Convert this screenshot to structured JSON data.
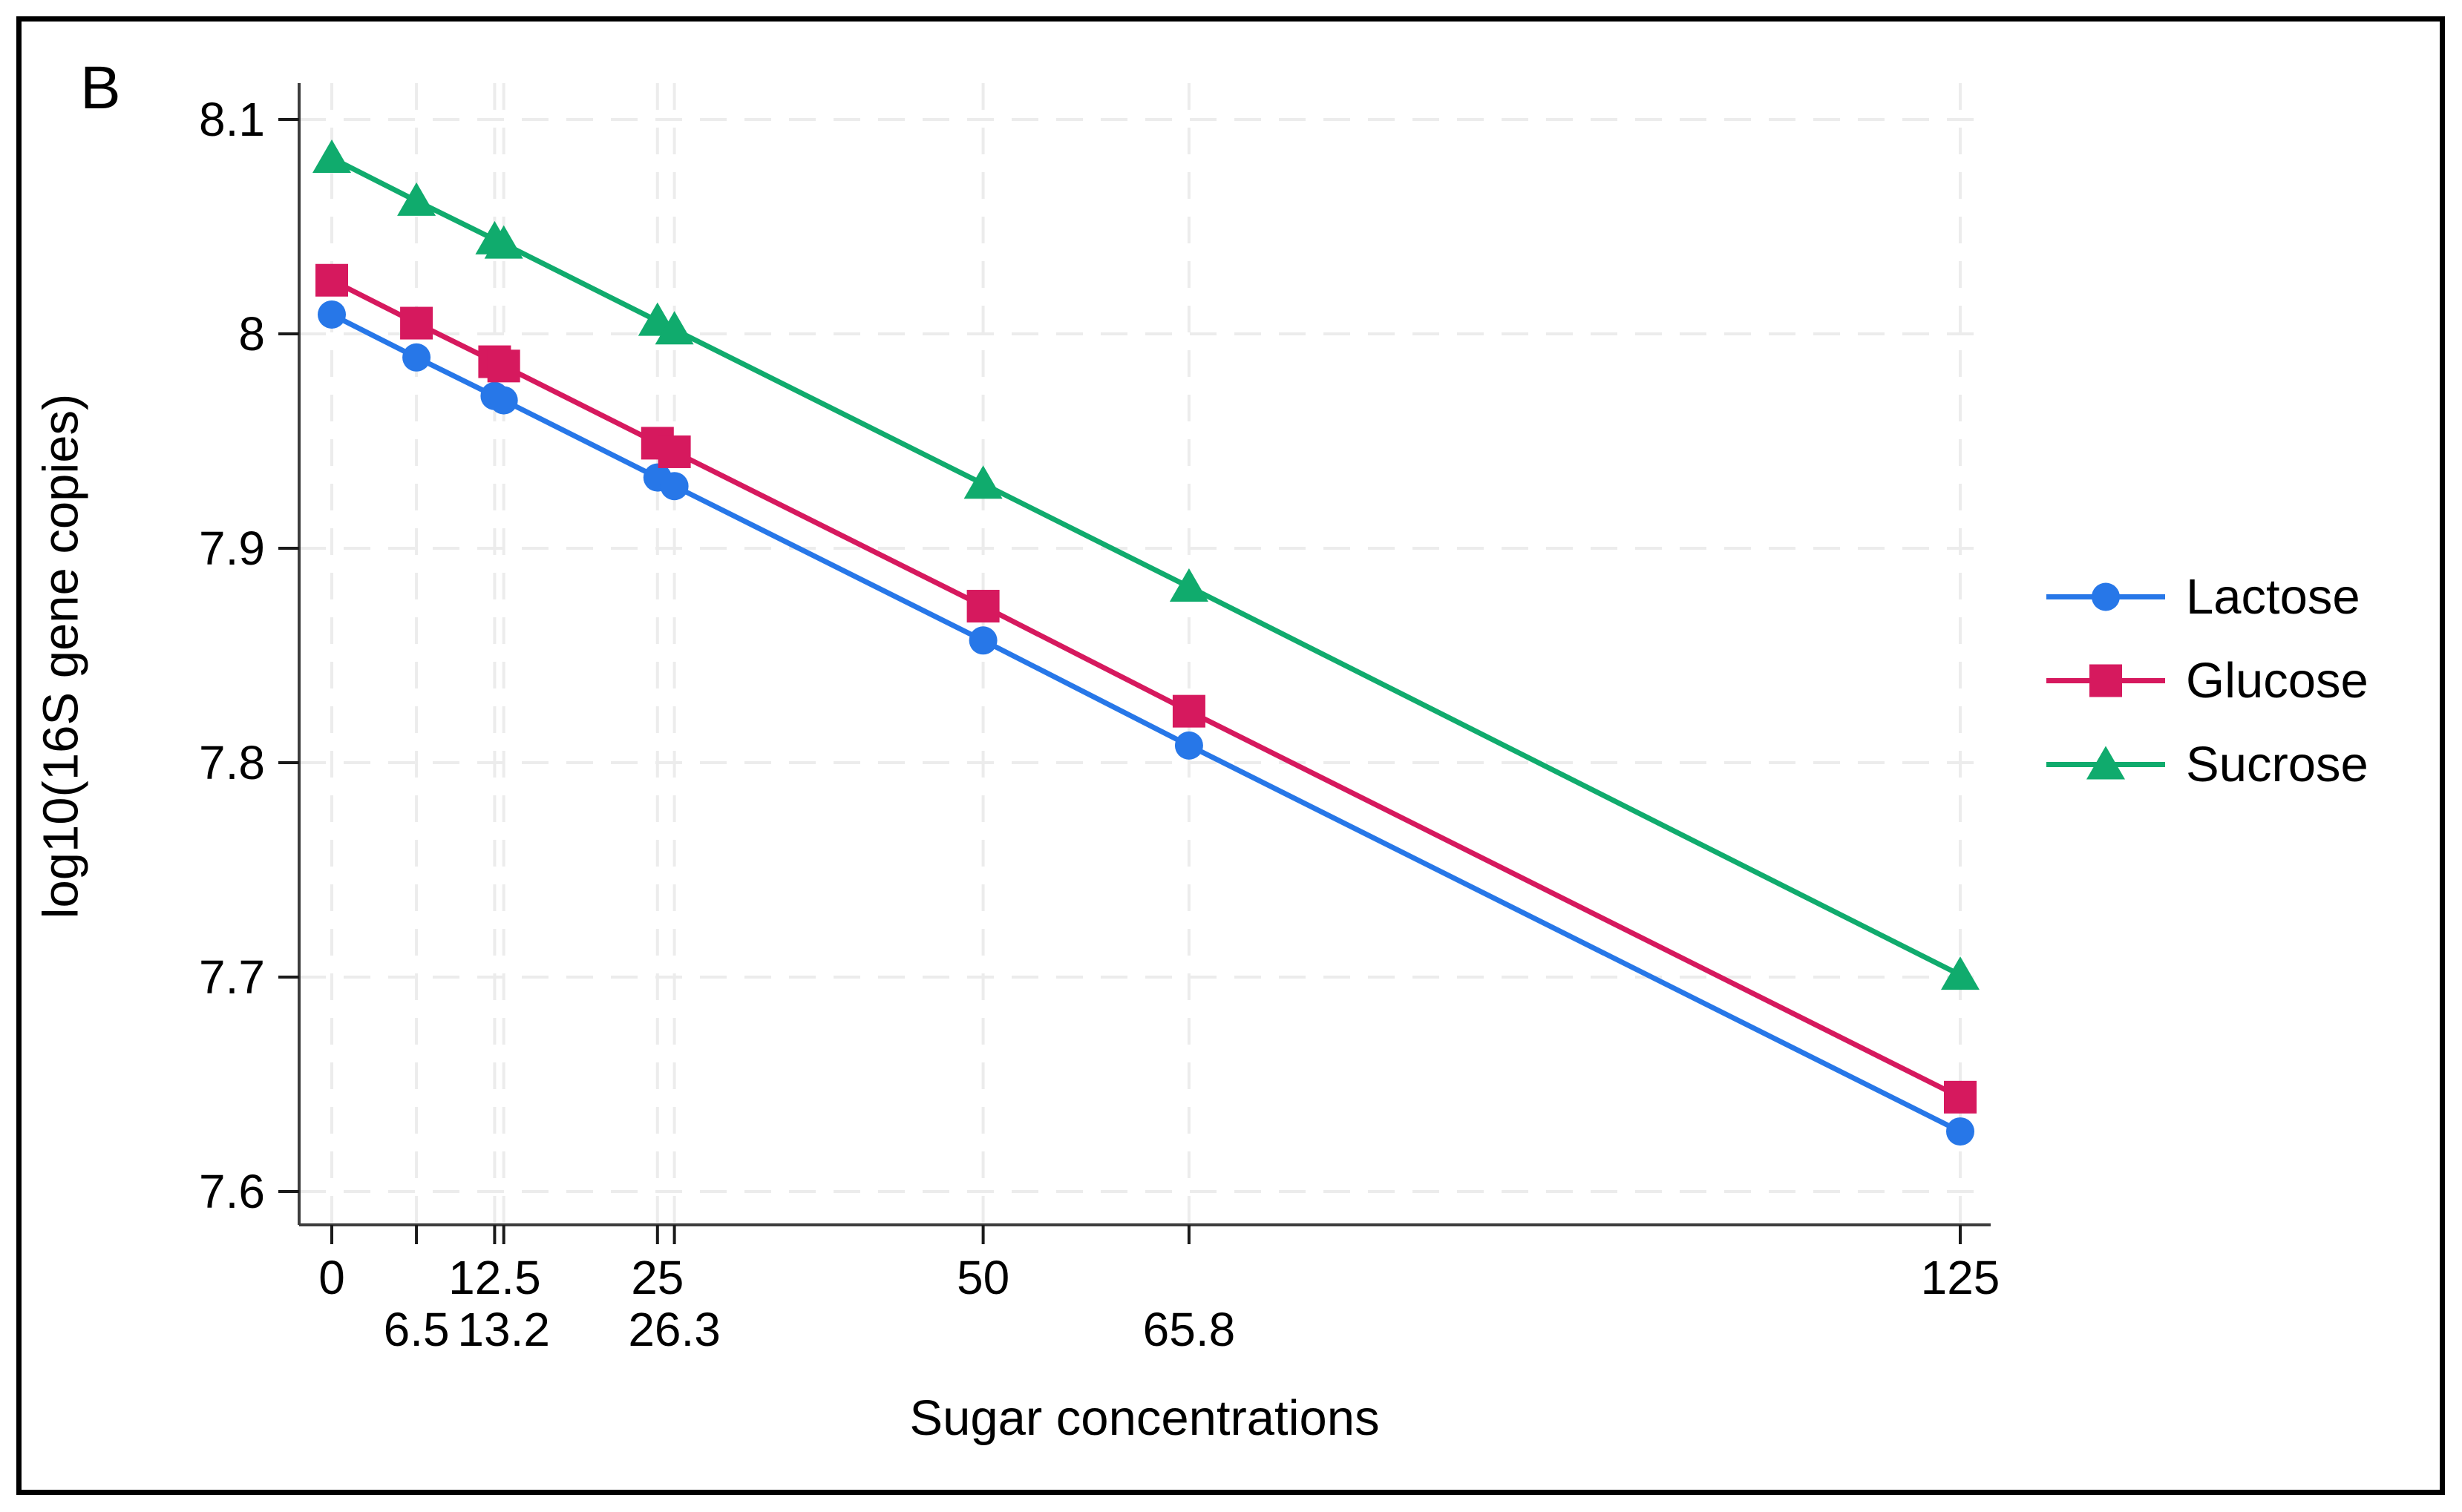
{
  "panel_label": "B",
  "y_axis": {
    "title": "log10(16S gene copies)",
    "ticks": [
      {
        "label": "8.1",
        "value": 8.1
      },
      {
        "label": "8",
        "value": 8.0
      },
      {
        "label": "7.9",
        "value": 7.9
      },
      {
        "label": "7.8",
        "value": 7.8
      },
      {
        "label": "7.7",
        "value": 7.7
      },
      {
        "label": "7.6",
        "value": 7.6
      }
    ]
  },
  "x_axis": {
    "title": "Sugar concentrations",
    "row1_ticks": [
      {
        "label": "0",
        "value": 0
      },
      {
        "label": "12.5",
        "value": 12.5
      },
      {
        "label": "25",
        "value": 25
      },
      {
        "label": "50",
        "value": 50
      },
      {
        "label": "125",
        "value": 125
      }
    ],
    "row2_ticks": [
      {
        "label": "6.5",
        "value": 6.5
      },
      {
        "label": "13.2",
        "value": 13.2
      },
      {
        "label": "26.3",
        "value": 26.3
      },
      {
        "label": "65.8",
        "value": 65.8
      }
    ]
  },
  "legend": {
    "items": [
      {
        "label": "Lactose",
        "marker": "circle",
        "color": "#2777e8"
      },
      {
        "label": "Glucose",
        "marker": "square",
        "color": "#d6195e"
      },
      {
        "label": "Sucrose",
        "marker": "triangle",
        "color": "#10ab6d"
      }
    ]
  },
  "colors": {
    "axis_line": "#3d3d3d",
    "tick_mark": "#1a1a1a",
    "grid_line": "#ececec",
    "text": "#000000",
    "background": "#ffffff"
  },
  "chart_data": {
    "type": "line",
    "x": [
      0,
      6.5,
      12.5,
      13.2,
      25,
      26.3,
      50,
      65.8,
      125
    ],
    "series": [
      {
        "name": "Lactose",
        "marker": "circle",
        "color": "#2777e8",
        "values": [
          8.009,
          7.989,
          7.971,
          7.969,
          7.933,
          7.929,
          7.857,
          7.808,
          7.628
        ]
      },
      {
        "name": "Glucose",
        "marker": "square",
        "color": "#d6195e",
        "values": [
          8.025,
          8.005,
          7.987,
          7.985,
          7.949,
          7.945,
          7.873,
          7.824,
          7.644
        ]
      },
      {
        "name": "Sucrose",
        "marker": "triangle",
        "color": "#10ab6d",
        "values": [
          8.082,
          8.062,
          8.044,
          8.042,
          8.006,
          8.002,
          7.93,
          7.882,
          7.701
        ]
      }
    ],
    "title": "",
    "xlabel": "Sugar concentrations",
    "ylabel": "log10(16S gene copies)",
    "xlim": [
      -2.5,
      127.3
    ],
    "ylim": [
      7.585,
      8.117
    ],
    "grid": true,
    "grid_style": "dashed",
    "legend_position": "right-outside"
  }
}
